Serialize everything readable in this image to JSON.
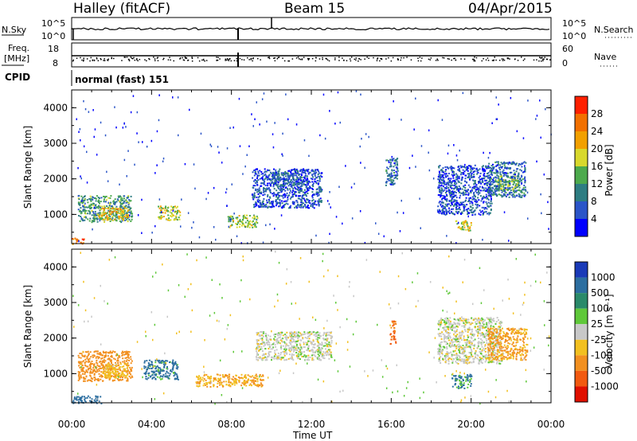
{
  "header": {
    "station": "Halley (fitACF)",
    "beam": "Beam 15",
    "date": "04/Apr/2015"
  },
  "summary": {
    "nsky_label": "N.Sky",
    "nsky_ticks": [
      "10^5",
      "10^0"
    ],
    "nsearch_label": "N.Search",
    "nsearch_ticks": [
      "10^5",
      "10^0"
    ],
    "freq_label": "Freq.",
    "freq_unit": "[MHz]",
    "freq_ticks": [
      "18",
      "8"
    ],
    "nave_label": "Nave",
    "nave_ticks": [
      "60",
      "0"
    ],
    "cpid_label": "CPID",
    "cpid_value": "normal (fast) 151"
  },
  "axes": {
    "xlabel": "Time UT",
    "xticks": [
      "00:00",
      "04:00",
      "08:00",
      "12:00",
      "16:00",
      "20:00",
      "00:00"
    ],
    "ylabel": "Slant Range [km]",
    "yticks": [
      "1000",
      "2000",
      "3000",
      "4000"
    ]
  },
  "power_scale": {
    "label": "Power [dB]",
    "ticks": [
      "4",
      "8",
      "12",
      "16",
      "20",
      "24",
      "28"
    ],
    "colors": [
      "#0000ff",
      "#2b55c8",
      "#2e7d82",
      "#4daa4d",
      "#d8d82c",
      "#f2a000",
      "#f27000",
      "#ff2000"
    ]
  },
  "velocity_scale": {
    "label": "Velocity [m s⁻¹]",
    "ticks": [
      "1000",
      "500",
      "100",
      "25",
      "-25",
      "-100",
      "-500",
      "-1000"
    ],
    "colors": [
      "#1a3ab8",
      "#2c6ea0",
      "#2a8a6a",
      "#5fc83a",
      "#c8c8c8",
      "#f2c020",
      "#f29020",
      "#f25a10",
      "#e01000"
    ]
  },
  "chart_data": [
    {
      "type": "heatmap",
      "title": "Power [dB]",
      "xlabel": "Time UT",
      "ylabel": "Slant Range [km]",
      "xlim": [
        0,
        24
      ],
      "ylim": [
        180,
        4500
      ],
      "clim": [
        0,
        30
      ],
      "scatter_regions": [
        {
          "t0": 0.3,
          "t1": 3.0,
          "r0": 800,
          "r1": 1550,
          "value": 12
        },
        {
          "t0": 1.3,
          "t1": 2.8,
          "r0": 850,
          "r1": 1200,
          "value": 20
        },
        {
          "t0": 4.3,
          "t1": 5.4,
          "r0": 850,
          "r1": 1250,
          "value": 18
        },
        {
          "t0": 7.8,
          "t1": 9.3,
          "r0": 650,
          "r1": 1000,
          "value": 16
        },
        {
          "t0": 9.0,
          "t1": 12.5,
          "r0": 1200,
          "r1": 2300,
          "value": 6
        },
        {
          "t0": 10.0,
          "t1": 11.5,
          "r0": 1800,
          "r1": 2200,
          "value": 8
        },
        {
          "t0": 15.7,
          "t1": 16.3,
          "r0": 1800,
          "r1": 2600,
          "value": 8
        },
        {
          "t0": 18.3,
          "t1": 21.0,
          "r0": 1000,
          "r1": 2400,
          "value": 6
        },
        {
          "t0": 19.2,
          "t1": 20.0,
          "r0": 550,
          "r1": 850,
          "value": 18
        },
        {
          "t0": 20.8,
          "t1": 22.7,
          "r0": 1500,
          "r1": 2500,
          "value": 8
        },
        {
          "t0": 21.3,
          "t1": 22.4,
          "r0": 1700,
          "r1": 2100,
          "value": 14
        },
        {
          "t0": 0.0,
          "t1": 0.6,
          "r0": 180,
          "r1": 350,
          "value": 26
        }
      ]
    },
    {
      "type": "heatmap",
      "title": "Velocity [m s⁻¹]",
      "xlabel": "Time UT",
      "ylabel": "Slant Range [km]",
      "xlim": [
        0,
        24
      ],
      "ylim": [
        180,
        4500
      ],
      "clim": [
        -1000,
        1000
      ],
      "scatter_regions": [
        {
          "t0": 0.3,
          "t1": 3.0,
          "r0": 800,
          "r1": 1650,
          "value": -300
        },
        {
          "t0": 1.5,
          "t1": 2.8,
          "r0": 900,
          "r1": 1300,
          "value": -60
        },
        {
          "t0": 3.6,
          "t1": 5.3,
          "r0": 850,
          "r1": 1400,
          "value": 150
        },
        {
          "t0": 6.2,
          "t1": 9.6,
          "r0": 650,
          "r1": 1000,
          "value": -90
        },
        {
          "t0": 9.2,
          "t1": 13.0,
          "r0": 1400,
          "r1": 2200,
          "value": 0
        },
        {
          "t0": 15.9,
          "t1": 16.2,
          "r0": 1850,
          "r1": 2500,
          "value": -600
        },
        {
          "t0": 18.3,
          "t1": 21.5,
          "r0": 1300,
          "r1": 2600,
          "value": 0
        },
        {
          "t0": 19.0,
          "t1": 20.0,
          "r0": 600,
          "r1": 1000,
          "value": 120
        },
        {
          "t0": 20.8,
          "t1": 22.8,
          "r0": 1400,
          "r1": 2300,
          "value": -120
        },
        {
          "t0": 0.0,
          "t1": 1.5,
          "r0": 180,
          "r1": 400,
          "value": 200
        }
      ]
    }
  ]
}
